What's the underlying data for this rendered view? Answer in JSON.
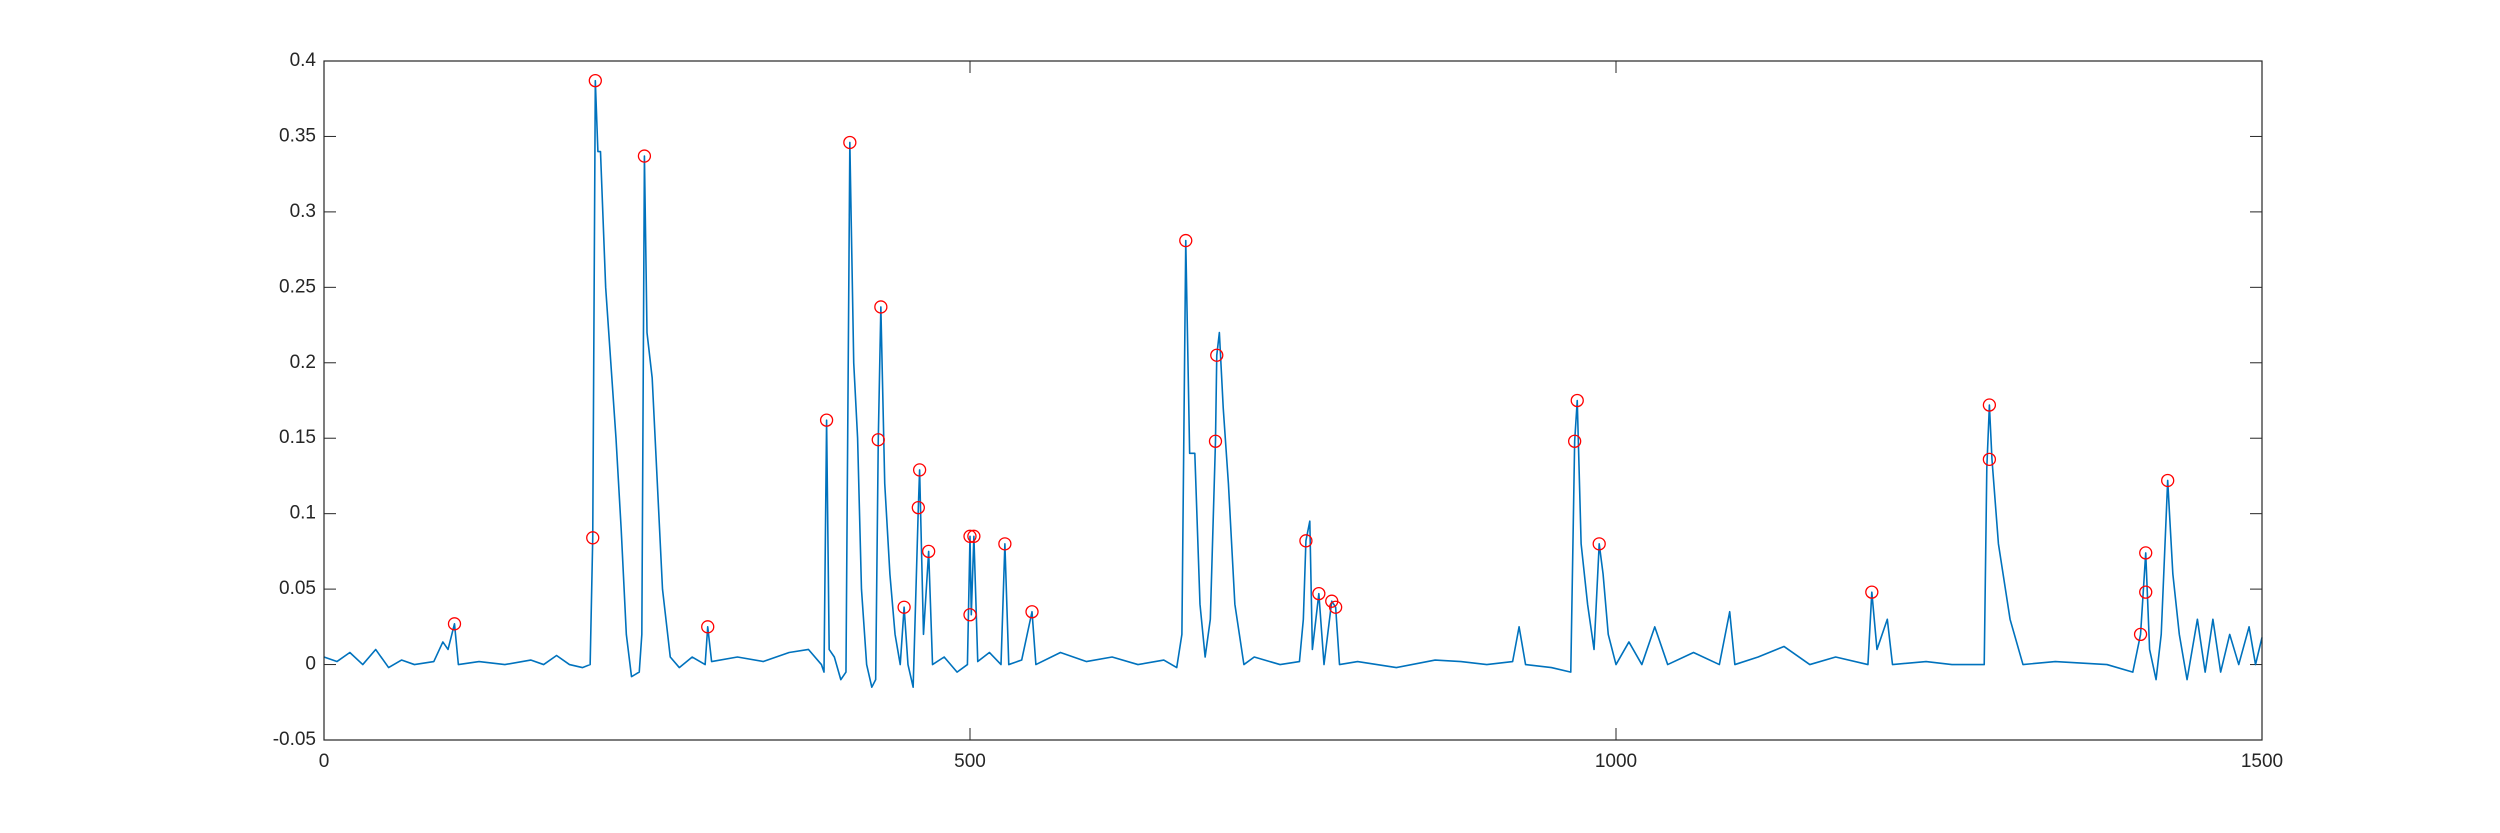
{
  "chart_data": {
    "type": "line",
    "xlim": [
      0,
      1500
    ],
    "ylim": [
      -0.05,
      0.4
    ],
    "xticks": [
      0,
      500,
      1000,
      1500
    ],
    "yticks": [
      -0.05,
      0,
      0.05,
      0.1,
      0.15,
      0.2,
      0.25,
      0.3,
      0.35,
      0.4
    ],
    "grid": false,
    "box": true,
    "series": [
      {
        "style": "line",
        "color": "#0072bd",
        "x": [
          0,
          10,
          20,
          30,
          40,
          50,
          60,
          70,
          85,
          92,
          96,
          101,
          104,
          120,
          140,
          160,
          170,
          180,
          190,
          200,
          206,
          208,
          210,
          212,
          214,
          218,
          222,
          226,
          230,
          234,
          238,
          244,
          246,
          248,
          250,
          254,
          258,
          262,
          268,
          275,
          285,
          295,
          297,
          300,
          320,
          340,
          360,
          375,
          385,
          387,
          389,
          391,
          395,
          400,
          404,
          407,
          410,
          413,
          416,
          420,
          424,
          427,
          429,
          431,
          434,
          438,
          442,
          446,
          449,
          452,
          456,
          460,
          461,
          464,
          468,
          471,
          480,
          490,
          498,
          500,
          501,
          503,
          506,
          515,
          524,
          527,
          530,
          540,
          548,
          551,
          570,
          590,
          610,
          630,
          650,
          660,
          664,
          667,
          670,
          674,
          678,
          682,
          686,
          690,
          691,
          693,
          696,
          700,
          705,
          712,
          720,
          740,
          755,
          758,
          760,
          763,
          765,
          770,
          774,
          780,
          783,
          786,
          800,
          830,
          860,
          880,
          900,
          920,
          925,
          930,
          950,
          965,
          968,
          970,
          973,
          978,
          983,
          987,
          990,
          994,
          1000,
          1010,
          1020,
          1030,
          1040,
          1060,
          1080,
          1088,
          1092,
          1110,
          1130,
          1150,
          1170,
          1195,
          1198,
          1202,
          1210,
          1214,
          1240,
          1260,
          1285,
          1287,
          1289,
          1291,
          1296,
          1305,
          1315,
          1340,
          1380,
          1400,
          1406,
          1410,
          1413,
          1418,
          1422,
          1427,
          1431,
          1436,
          1442,
          1450,
          1456,
          1462,
          1468,
          1475,
          1482,
          1490,
          1495,
          1500
        ],
        "y": [
          0.005,
          0.002,
          0.008,
          0.0,
          0.01,
          -0.002,
          0.003,
          0.0,
          0.002,
          0.015,
          0.01,
          0.027,
          0.0,
          0.002,
          0.0,
          0.003,
          0.0,
          0.006,
          0.0,
          -0.002,
          0.0,
          0.084,
          0.387,
          0.34,
          0.34,
          0.25,
          0.2,
          0.15,
          0.09,
          0.02,
          -0.008,
          -0.005,
          0.02,
          0.337,
          0.22,
          0.19,
          0.12,
          0.05,
          0.005,
          -0.002,
          0.005,
          0.0,
          0.025,
          0.002,
          0.005,
          0.002,
          0.008,
          0.01,
          0.0,
          -0.005,
          0.162,
          0.01,
          0.005,
          -0.01,
          -0.005,
          0.346,
          0.2,
          0.15,
          0.05,
          0.0,
          -0.015,
          -0.01,
          0.149,
          0.237,
          0.12,
          0.06,
          0.02,
          0.0,
          0.038,
          0.0,
          -0.015,
          0.104,
          0.129,
          0.02,
          0.075,
          0.0,
          0.005,
          -0.005,
          0.0,
          0.085,
          0.033,
          0.085,
          0.002,
          0.008,
          0.0,
          0.08,
          0.0,
          0.003,
          0.035,
          0.0,
          0.008,
          0.002,
          0.005,
          0.0,
          0.003,
          -0.002,
          0.02,
          0.281,
          0.14,
          0.14,
          0.04,
          0.005,
          0.03,
          0.148,
          0.205,
          0.22,
          0.17,
          0.12,
          0.04,
          0.0,
          0.005,
          0.0,
          0.002,
          0.03,
          0.082,
          0.095,
          0.01,
          0.047,
          0.0,
          0.042,
          0.038,
          0.0,
          0.002,
          -0.002,
          0.003,
          0.002,
          0.0,
          0.002,
          0.025,
          0.0,
          -0.002,
          -0.005,
          0.148,
          0.175,
          0.08,
          0.04,
          0.01,
          0.08,
          0.06,
          0.02,
          0.0,
          0.015,
          0.0,
          0.025,
          0.0,
          0.008,
          0.0,
          0.035,
          0.0,
          0.005,
          0.012,
          0.0,
          0.005,
          0.0,
          0.048,
          0.01,
          0.03,
          0.0,
          0.002,
          0.0,
          0.0,
          0.13,
          0.172,
          0.136,
          0.08,
          0.03,
          0.0,
          0.002,
          0.0,
          -0.005,
          0.02,
          0.074,
          0.01,
          -0.01,
          0.02,
          0.122,
          0.06,
          0.02,
          -0.01,
          0.03,
          -0.005,
          0.03,
          -0.005,
          0.02,
          0.0,
          0.025,
          0.0,
          0.018
        ]
      },
      {
        "style": "marker",
        "marker": "circle",
        "color": "#ff0000",
        "x": [
          101,
          210,
          208,
          248,
          297,
          389,
          407,
          431,
          429,
          449,
          461,
          460,
          468,
          500,
          503,
          500,
          527,
          548,
          667,
          691,
          690,
          760,
          770,
          780,
          783,
          970,
          968,
          987,
          1198,
          1289,
          1289,
          1410,
          1410,
          1406,
          1427
        ],
        "y": [
          0.027,
          0.387,
          0.084,
          0.337,
          0.025,
          0.162,
          0.346,
          0.237,
          0.149,
          0.038,
          0.129,
          0.104,
          0.075,
          0.085,
          0.085,
          0.033,
          0.08,
          0.035,
          0.281,
          0.205,
          0.148,
          0.082,
          0.047,
          0.042,
          0.038,
          0.175,
          0.148,
          0.08,
          0.048,
          0.172,
          0.136,
          0.074,
          0.048,
          0.02,
          0.122
        ]
      }
    ]
  }
}
